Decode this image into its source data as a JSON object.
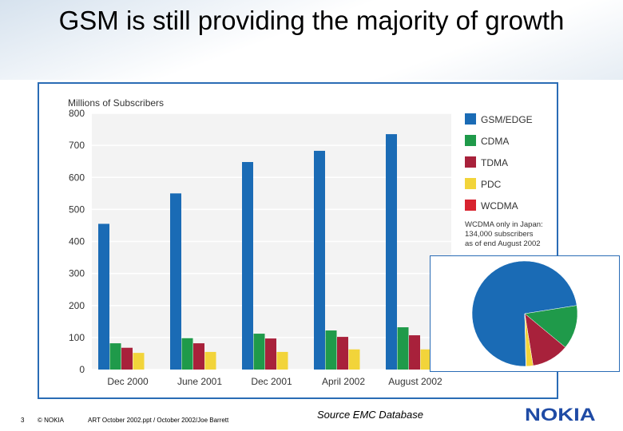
{
  "slide": {
    "title": "GSM is still providing the majority of growth",
    "page_number": "3",
    "copyright": "© NOKIA",
    "file_info": "ART October 2002.ppt / October 2002/Joe Barrett",
    "source": "Source EMC Database",
    "logo": "NOKIA"
  },
  "colors": {
    "gsm": "#1a6bb5",
    "cdma": "#1f9a4a",
    "tdma": "#a8213b",
    "pdc": "#f2d43a",
    "wcdma": "#d8232f",
    "frame": "#2a6cb5",
    "logo": "#1f4ba5"
  },
  "chart_data": [
    {
      "type": "bar",
      "ylabel": "Millions of Subscribers",
      "ylim": [
        0,
        800
      ],
      "yticks": [
        "0",
        "100",
        "200",
        "300",
        "400",
        "500",
        "600",
        "700",
        "800"
      ],
      "categories": [
        "Dec 2000",
        "June 2001",
        "Dec 2001",
        "April 2002",
        "August 2002"
      ],
      "series": [
        {
          "name": "GSM/EDGE",
          "values": [
            455,
            550,
            648,
            683,
            735
          ]
        },
        {
          "name": "CDMA",
          "values": [
            82,
            98,
            112,
            122,
            132
          ]
        },
        {
          "name": "TDMA",
          "values": [
            68,
            82,
            97,
            102,
            107
          ]
        },
        {
          "name": "PDC",
          "values": [
            52,
            55,
            55,
            63,
            63
          ]
        },
        {
          "name": "WCDMA",
          "values": [
            0,
            0,
            0,
            0,
            0
          ]
        }
      ],
      "legend": [
        "GSM/EDGE",
        "CDMA",
        "TDMA",
        "PDC",
        "WCDMA"
      ],
      "legend_position": "right",
      "annotation": [
        "WCDMA only in Japan:",
        "134,000 subscribers",
        "as of end August 2002"
      ]
    },
    {
      "type": "pie",
      "slices": [
        {
          "name": "GSM/EDGE",
          "value": 70.0
        },
        {
          "name": "CDMA",
          "value": 13.0
        },
        {
          "name": "TDMA",
          "value": 11.0
        },
        {
          "name": "PDC",
          "value": 2.0
        },
        {
          "name": "WCDMA",
          "value": 0.1
        }
      ]
    }
  ]
}
